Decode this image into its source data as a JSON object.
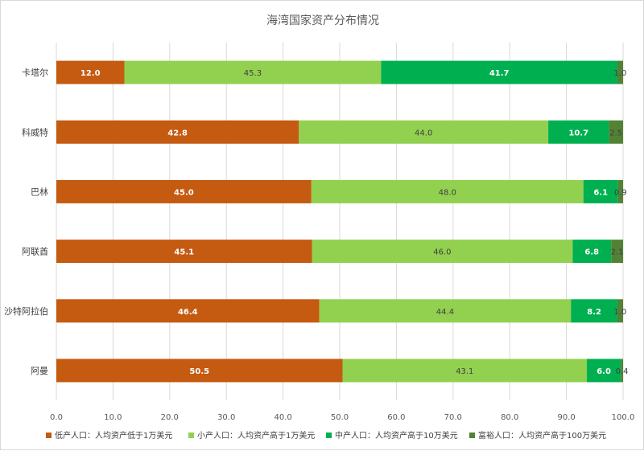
{
  "chart_data": {
    "type": "bar",
    "orientation": "horizontal",
    "stacked": true,
    "title": "海湾国家资产分布情况",
    "categories": [
      "卡塔尔",
      "科威特",
      "巴林",
      "阿联酋",
      "沙特阿拉伯",
      "阿曼"
    ],
    "series": [
      {
        "name": "低产人口：人均资产低于1万美元",
        "color": "#c55a11",
        "label_color": "#ffffff",
        "label_bold": true,
        "values": [
          12.0,
          42.8,
          45.0,
          45.1,
          46.4,
          50.5
        ]
      },
      {
        "name": "小产人口：人均资产高于1万美元",
        "color": "#92d050",
        "label_color": "#404040",
        "label_bold": false,
        "values": [
          45.3,
          44.0,
          48.0,
          46.0,
          44.4,
          43.1
        ]
      },
      {
        "name": "中产人口：人均资产高于10万美元",
        "color": "#00b050",
        "label_color": "#ffffff",
        "label_bold": true,
        "values": [
          41.7,
          10.7,
          6.1,
          6.8,
          8.2,
          6.0
        ]
      },
      {
        "name": "富裕人口：人均资产高于100万美元",
        "color": "#548235",
        "label_color": "#404040",
        "label_bold": false,
        "values": [
          1.0,
          2.5,
          0.9,
          2.1,
          1.0,
          0.4
        ]
      }
    ],
    "x_ticks": [
      "0.0",
      "10.0",
      "20.0",
      "30.0",
      "40.0",
      "50.0",
      "60.0",
      "70.0",
      "80.0",
      "90.0",
      "100.0"
    ],
    "xlim": [
      0,
      100
    ],
    "grid": true,
    "legend_position": "bottom"
  }
}
